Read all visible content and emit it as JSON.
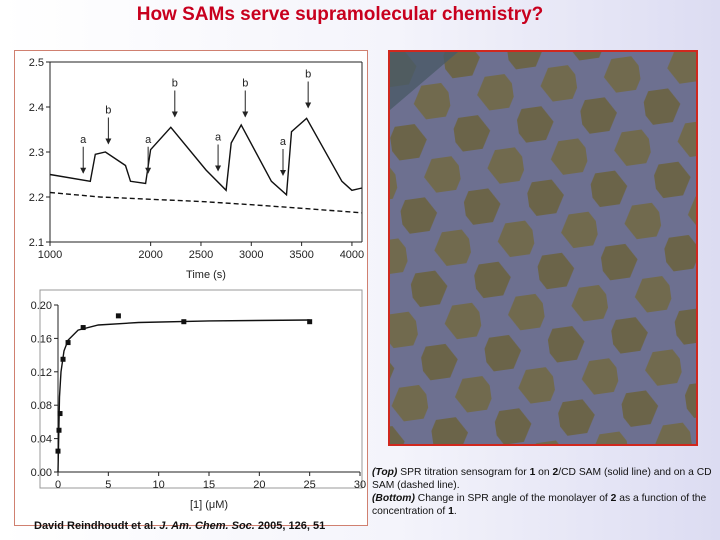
{
  "slide": {
    "title": "How SAMs serve supramolecular chemistry?",
    "citation": [
      {
        "text": "David Reindhoudt et al. ",
        "italic": false
      },
      {
        "text": "J. Am. Chem. Soc.",
        "italic": true
      },
      {
        "text": " 2005, 126, 51",
        "italic": false
      }
    ],
    "caption": [
      {
        "text": "(Top)",
        "bold": true,
        "italic": true
      },
      {
        "text": " SPR titration sensogram for ",
        "bold": false,
        "italic": false
      },
      {
        "text": "1",
        "bold": true,
        "italic": false
      },
      {
        "text": " on ",
        "bold": false,
        "italic": false
      },
      {
        "text": "2",
        "bold": true,
        "italic": false
      },
      {
        "text": "/CD SAM (solid line) and on a CD SAM (dashed line).",
        "bold": false,
        "italic": false
      },
      {
        "text": "(Bottom)",
        "bold": true,
        "italic": true
      },
      {
        "text": " Change in SPR angle of the monolayer of ",
        "bold": false,
        "italic": false
      },
      {
        "text": "2",
        "bold": true,
        "italic": false
      },
      {
        "text": " as a function of the concentration of ",
        "bold": false,
        "italic": false
      },
      {
        "text": "1",
        "bold": true,
        "italic": false
      },
      {
        "text": ".",
        "bold": false,
        "italic": false
      }
    ]
  },
  "chart_data": [
    {
      "type": "line",
      "x_label": "Time (s)",
      "xlim": [
        1000,
        4100
      ],
      "xticks": [
        1000,
        2000,
        2500,
        3000,
        3500,
        4000
      ],
      "ylim": [
        2.1,
        2.5
      ],
      "yticks": [
        2.1,
        2.2,
        2.3,
        2.4,
        2.5
      ],
      "series": [
        {
          "color": "#111111",
          "dashed": false,
          "x": [
            1000,
            1400,
            1450,
            1550,
            1750,
            1800,
            1950,
            2000,
            2200,
            2550,
            2750,
            2800,
            2900,
            3200,
            3350,
            3400,
            3550,
            3900,
            4000,
            4100
          ],
          "values": [
            2.25,
            2.235,
            2.295,
            2.3,
            2.27,
            2.235,
            2.23,
            2.305,
            2.355,
            2.26,
            2.215,
            2.32,
            2.36,
            2.235,
            2.205,
            2.345,
            2.375,
            2.235,
            2.215,
            2.22
          ]
        },
        {
          "color": "#111111",
          "dashed": true,
          "x": [
            1000,
            1500,
            2000,
            2500,
            3000,
            3500,
            4100
          ],
          "values": [
            2.21,
            2.2,
            2.195,
            2.19,
            2.183,
            2.175,
            2.165
          ]
        }
      ],
      "annotations": [
        {
          "text": "a",
          "x": 1330,
          "y": 2.245
        },
        {
          "text": "b",
          "x": 1580,
          "y": 2.31
        },
        {
          "text": "a",
          "x": 1975,
          "y": 2.245
        },
        {
          "text": "b",
          "x": 2240,
          "y": 2.37
        },
        {
          "text": "a",
          "x": 2670,
          "y": 2.25
        },
        {
          "text": "b",
          "x": 2940,
          "y": 2.37
        },
        {
          "text": "a",
          "x": 3315,
          "y": 2.24
        },
        {
          "text": "b",
          "x": 3565,
          "y": 2.39
        }
      ]
    },
    {
      "type": "scatter",
      "x_label": "[1] (μM)",
      "xlim": [
        0,
        30
      ],
      "xticks": [
        0,
        5,
        10,
        15,
        20,
        25,
        30
      ],
      "ylim": [
        0,
        0.2
      ],
      "yticks": [
        {
          "value": 0,
          "label": "0.00"
        },
        {
          "value": 0.04,
          "label": "0.04"
        },
        {
          "value": 0.08,
          "label": "0.08"
        },
        {
          "value": 0.12,
          "label": "0.12"
        },
        {
          "value": 0.16,
          "label": "0.16"
        },
        {
          "value": 0.2,
          "label": "0.20"
        }
      ],
      "color": "#111111",
      "x": [
        0,
        0.1,
        0.2,
        0.5,
        1,
        2.5,
        6,
        12.5,
        25
      ],
      "values": [
        0.025,
        0.05,
        0.07,
        0.135,
        0.155,
        0.173,
        0.187,
        0.18,
        0.18
      ],
      "fit_x": [
        0,
        0.15,
        0.3,
        0.6,
        1,
        2,
        4,
        8,
        15,
        25
      ],
      "fit_values": [
        0,
        0.09,
        0.12,
        0.145,
        0.158,
        0.17,
        0.176,
        0.179,
        0.181,
        0.182
      ]
    }
  ]
}
